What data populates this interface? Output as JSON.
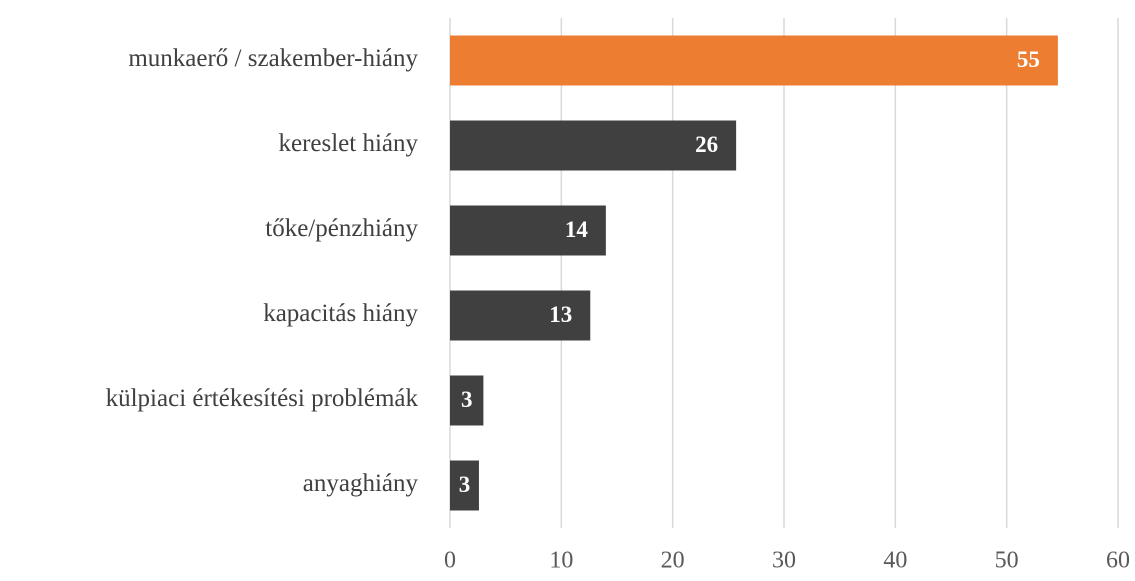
{
  "chart_data": {
    "type": "hbar",
    "categories": [
      "munkaerő / szakember-hiány",
      "kereslet hiány",
      "tőke/pénzhiány",
      "kapacitás hiány",
      "külpiaci értékesítési problémák",
      "anyaghiány"
    ],
    "values": [
      54.6,
      25.7,
      14,
      12.6,
      3,
      2.6
    ],
    "value_labels": [
      "55",
      "26",
      "14",
      "13",
      "3",
      "3"
    ],
    "colors": [
      "#ed7d31",
      "#404040",
      "#404040",
      "#404040",
      "#404040",
      "#404040"
    ],
    "xlim": [
      0,
      60
    ],
    "xticks": [
      0,
      10,
      20,
      30,
      40,
      50,
      60
    ],
    "grid": true
  }
}
